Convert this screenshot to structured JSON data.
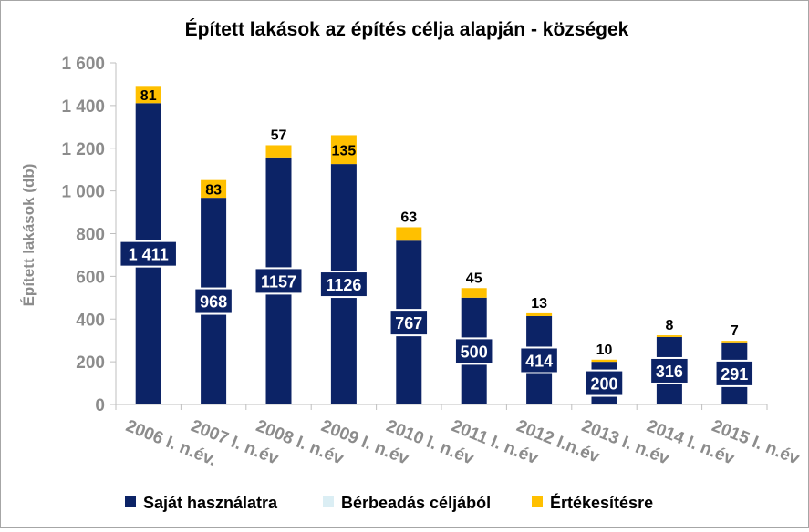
{
  "chart_data": {
    "type": "bar",
    "stacked": true,
    "title": "Épített lakások az építés célja alapján - községek",
    "ylabel": "Épített lakások (db)",
    "xlabel": "",
    "ylim": [
      0,
      1600
    ],
    "yticks": [
      0,
      200,
      400,
      600,
      800,
      1000,
      1200,
      1400,
      1600
    ],
    "ytick_labels": [
      "0",
      "200",
      "400",
      "600",
      "800",
      "1 000",
      "1 200",
      "1 400",
      "1 600"
    ],
    "categories": [
      "2006 I. n.év.",
      "2007 I. n.év",
      "2008 I. n.év",
      "2009 I. n.év",
      "2010 I. n.év",
      "2011 I. n.év",
      "2012 I.n.év",
      "2013 I. n.év",
      "2014 I. n.év",
      "2015 I. n.év"
    ],
    "series": [
      {
        "name": "Saját használatra",
        "color": "#0c2366",
        "values": [
          1411,
          968,
          1157,
          1126,
          767,
          500,
          414,
          200,
          316,
          291
        ],
        "labels": [
          "1 411",
          "968",
          "1157",
          "1126",
          "767",
          "500",
          "414",
          "200",
          "316",
          "291"
        ]
      },
      {
        "name": "Bérbeadás céljából",
        "color": "#dbeef4",
        "values": [
          0,
          0,
          0,
          0,
          0,
          0,
          0,
          0,
          0,
          0
        ],
        "labels": []
      },
      {
        "name": "Értékesítésre",
        "color": "#ffc000",
        "values": [
          81,
          83,
          57,
          135,
          63,
          45,
          13,
          10,
          8,
          7
        ],
        "labels": [
          "81",
          "83",
          "57",
          "135",
          "63",
          "45",
          "13",
          "10",
          "8",
          "7"
        ]
      }
    ],
    "legend_position": "bottom",
    "grid": false
  }
}
